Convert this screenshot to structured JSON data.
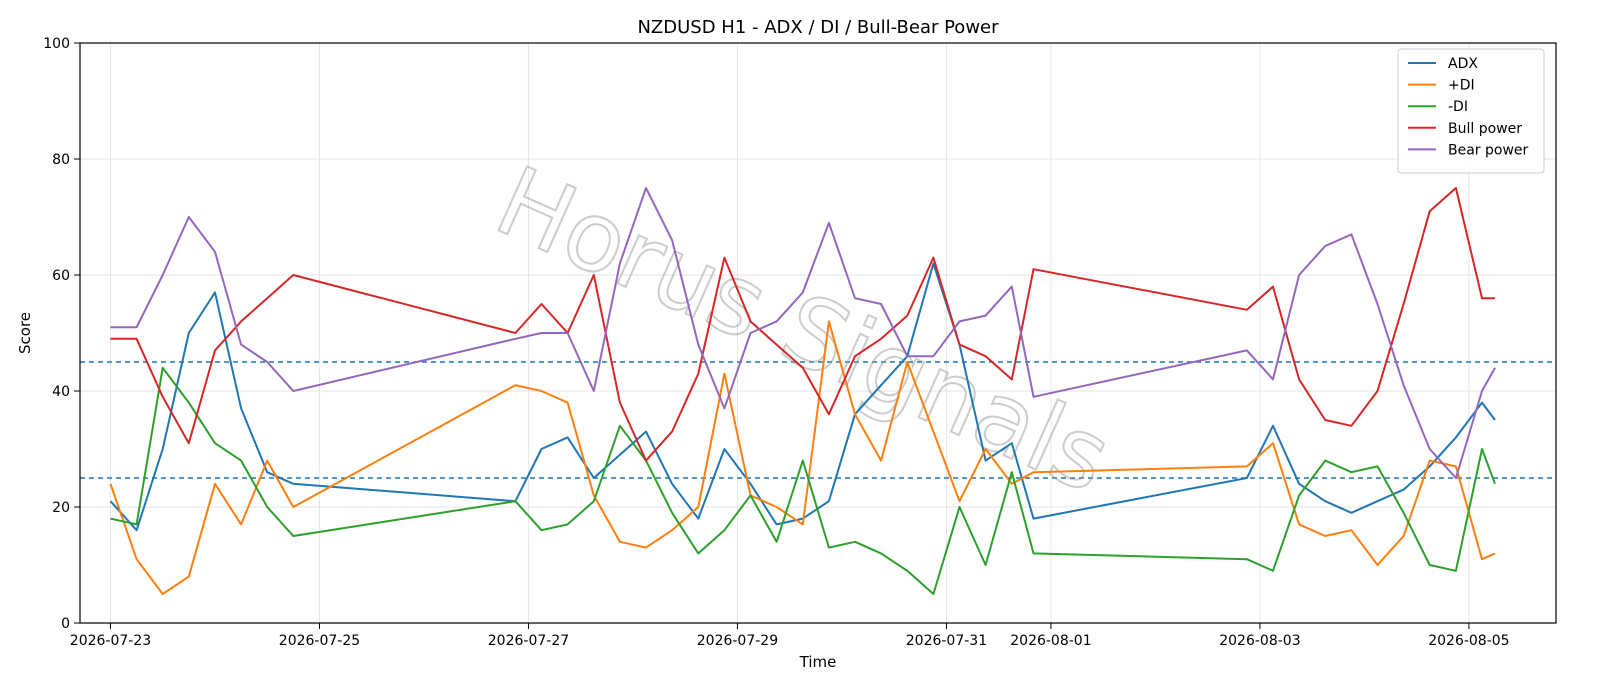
{
  "chart_data": {
    "type": "line",
    "title": "NZDUSD H1 - ADX / DI / Bull-Bear Power",
    "xlabel": "Time",
    "ylabel": "Score",
    "ylim": [
      0,
      100
    ],
    "yticks": [
      0,
      20,
      40,
      60,
      80,
      100
    ],
    "xlim": [
      "2026-07-22T17:00",
      "2026-08-05T20:00"
    ],
    "xticks": [
      "2026-07-23",
      "2026-07-25",
      "2026-07-27",
      "2026-07-29",
      "2026-07-31",
      "2026-08-01",
      "2026-08-03",
      "2026-08-05"
    ],
    "grid": true,
    "legend_position": "upper-right",
    "reference_lines": [
      25,
      45
    ],
    "watermark": "Horus Signals",
    "x": [
      "2026-07-23T00:00",
      "2026-07-23T06:00",
      "2026-07-23T12:00",
      "2026-07-23T18:00",
      "2026-07-24T00:00",
      "2026-07-24T06:00",
      "2026-07-24T12:00",
      "2026-07-24T18:00",
      "2026-07-26T21:00",
      "2026-07-27T03:00",
      "2026-07-27T09:00",
      "2026-07-27T15:00",
      "2026-07-27T21:00",
      "2026-07-28T03:00",
      "2026-07-28T09:00",
      "2026-07-28T15:00",
      "2026-07-28T21:00",
      "2026-07-29T03:00",
      "2026-07-29T09:00",
      "2026-07-29T15:00",
      "2026-07-29T21:00",
      "2026-07-30T03:00",
      "2026-07-30T09:00",
      "2026-07-30T15:00",
      "2026-07-30T21:00",
      "2026-07-31T03:00",
      "2026-07-31T09:00",
      "2026-07-31T15:00",
      "2026-07-31T20:00",
      "2026-08-02T21:00",
      "2026-08-03T03:00",
      "2026-08-03T09:00",
      "2026-08-03T15:00",
      "2026-08-03T21:00",
      "2026-08-04T03:00",
      "2026-08-04T09:00",
      "2026-08-04T15:00",
      "2026-08-04T21:00",
      "2026-08-05T03:00",
      "2026-08-05T06:00"
    ],
    "series": [
      {
        "name": "ADX",
        "color": "#1f77b4",
        "values": [
          21,
          16,
          30,
          50,
          57,
          37,
          26,
          24,
          21,
          30,
          32,
          25,
          29,
          33,
          24,
          18,
          30,
          24,
          17,
          18,
          21,
          36,
          41,
          46,
          62,
          48,
          28,
          31,
          18,
          25,
          34,
          24,
          21,
          19,
          21,
          23,
          27,
          32,
          38,
          35
        ]
      },
      {
        "name": "+DI",
        "color": "#ff7f0e",
        "values": [
          24,
          11,
          5,
          8,
          24,
          17,
          28,
          20,
          41,
          40,
          38,
          22,
          14,
          13,
          16,
          20,
          43,
          22,
          20,
          17,
          52,
          36,
          28,
          45,
          33,
          21,
          30,
          24,
          26,
          27,
          31,
          17,
          15,
          16,
          10,
          15,
          28,
          27,
          11,
          12
        ]
      },
      {
        "name": "-DI",
        "color": "#2ca02c",
        "values": [
          18,
          17,
          44,
          38,
          31,
          28,
          20,
          15,
          21,
          16,
          17,
          21,
          34,
          28,
          19,
          12,
          16,
          22,
          14,
          28,
          13,
          14,
          12,
          9,
          5,
          20,
          10,
          26,
          12,
          11,
          9,
          22,
          28,
          26,
          27,
          19,
          10,
          9,
          30,
          24
        ]
      },
      {
        "name": "Bull power",
        "color": "#d62728",
        "values": [
          49,
          49,
          39,
          31,
          47,
          52,
          56,
          60,
          50,
          55,
          50,
          60,
          38,
          28,
          33,
          43,
          63,
          52,
          48,
          44,
          36,
          46,
          49,
          53,
          63,
          48,
          46,
          42,
          61,
          54,
          58,
          42,
          35,
          34,
          40,
          55,
          71,
          75,
          56,
          56
        ]
      },
      {
        "name": "Bear power",
        "color": "#9467bd",
        "values": [
          51,
          51,
          60,
          70,
          64,
          48,
          45,
          40,
          49,
          50,
          50,
          40,
          62,
          75,
          66,
          48,
          37,
          50,
          52,
          57,
          69,
          56,
          55,
          46,
          46,
          52,
          53,
          58,
          39,
          47,
          42,
          60,
          65,
          67,
          55,
          41,
          30,
          25,
          40,
          44
        ]
      }
    ]
  }
}
